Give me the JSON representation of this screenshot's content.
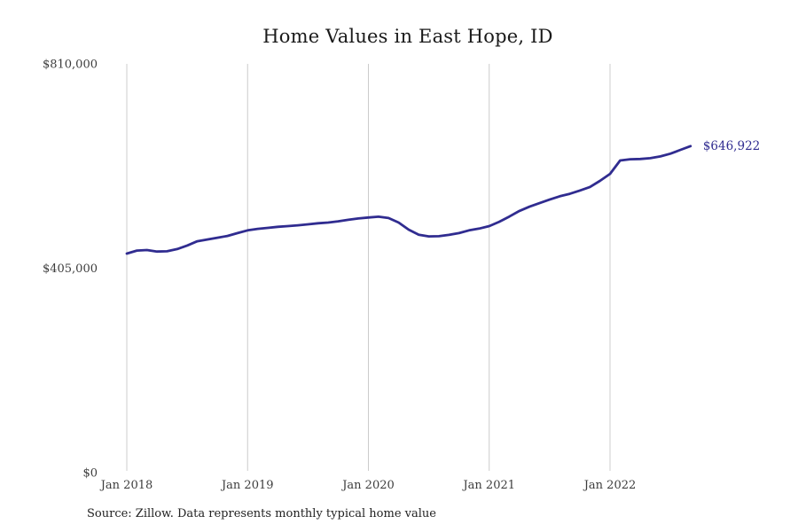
{
  "header": {
    "title": "Home Values in East Hope, ID"
  },
  "footer": {
    "source": "Source: Zillow. Data represents monthly typical home value"
  },
  "colors": {
    "line": "#302c90",
    "end_label": "#302c90",
    "gridline": "#cccccc",
    "title_text": "#1a1a1a",
    "tick_text": "#3d3d3d",
    "background": "#ffffff"
  },
  "chart_data": {
    "type": "line",
    "title": "Home Values in East Hope, ID",
    "xlabel": "",
    "ylabel": "",
    "ylim": [
      0,
      810000
    ],
    "grid": "vertical-only",
    "legend": "none",
    "end_label": "$646,922",
    "y_ticks": [
      {
        "label": "$0",
        "value": 0
      },
      {
        "label": "$405,000",
        "value": 405000
      },
      {
        "label": "$810,000",
        "value": 810000
      }
    ],
    "x_ticks": [
      {
        "label": "Jan 2018",
        "index": 0
      },
      {
        "label": "Jan 2019",
        "index": 12
      },
      {
        "label": "Jan 2020",
        "index": 24
      },
      {
        "label": "Jan 2021",
        "index": 36
      },
      {
        "label": "Jan 2022",
        "index": 48
      }
    ],
    "x": [
      "Jan 2018",
      "Feb 2018",
      "Mar 2018",
      "Apr 2018",
      "May 2018",
      "Jun 2018",
      "Jul 2018",
      "Aug 2018",
      "Sep 2018",
      "Oct 2018",
      "Nov 2018",
      "Dec 2018",
      "Jan 2019",
      "Feb 2019",
      "Mar 2019",
      "Apr 2019",
      "May 2019",
      "Jun 2019",
      "Jul 2019",
      "Aug 2019",
      "Sep 2019",
      "Oct 2019",
      "Nov 2019",
      "Dec 2019",
      "Jan 2020",
      "Feb 2020",
      "Mar 2020",
      "Apr 2020",
      "May 2020",
      "Jun 2020",
      "Jul 2020",
      "Aug 2020",
      "Sep 2020",
      "Oct 2020",
      "Nov 2020",
      "Dec 2020",
      "Jan 2021",
      "Feb 2021",
      "Mar 2021",
      "Apr 2021",
      "May 2021",
      "Jun 2021",
      "Jul 2021",
      "Aug 2021",
      "Sep 2021",
      "Oct 2021",
      "Nov 2021",
      "Dec 2021",
      "Jan 2022",
      "Feb 2022",
      "Mar 2022",
      "Apr 2022",
      "May 2022",
      "Jun 2022",
      "Jul 2022",
      "Aug 2022",
      "Sep 2022"
    ],
    "values": [
      434000,
      440000,
      441000,
      438000,
      438500,
      443000,
      450000,
      458500,
      462000,
      465500,
      469000,
      474500,
      480000,
      483000,
      485000,
      487000,
      488500,
      490000,
      492000,
      494000,
      495500,
      498000,
      501000,
      503500,
      505500,
      507000,
      504500,
      495500,
      481500,
      471500,
      468000,
      468500,
      471000,
      474500,
      480000,
      483500,
      488500,
      497000,
      507500,
      518500,
      527000,
      534000,
      541000,
      547500,
      552500,
      559000,
      566000,
      578000,
      592000,
      618500,
      621000,
      621500,
      623000,
      626500,
      632000,
      639500,
      646922
    ]
  }
}
